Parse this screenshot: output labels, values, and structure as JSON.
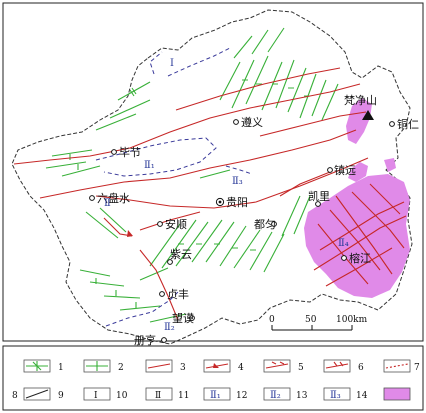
{
  "cities": {
    "bijie": "毕节",
    "zunyi": "遵义",
    "tongren": "铜仁",
    "fanjingshan": "梵净山",
    "zhenyuan": "镇远",
    "kaili": "凯里",
    "guiyang": "贵阳",
    "liupanshui": "六盘水",
    "anshun": "安顺",
    "duyun": "都匀",
    "ziyun": "紫云",
    "rongjiang": "榕江",
    "zhenfeng": "贞丰",
    "wangmo": "望谟",
    "ceheng": "册亨"
  },
  "zones": {
    "z1": "Ⅰ",
    "z2": "Ⅱ",
    "z2_1": "Ⅱ₁",
    "z2_2": "Ⅱ₂",
    "z2_3": "Ⅱ₃",
    "z2_4": "Ⅱ₄"
  },
  "scale": {
    "t0": "0",
    "t50": "50",
    "t100": "100km"
  },
  "legend": {
    "n1": "1",
    "n2": "2",
    "n3": "3",
    "n4": "4",
    "n5": "5",
    "n6": "6",
    "n7": "7",
    "n8": "8",
    "n9": "9",
    "n10": "10",
    "n11": "11",
    "n12": "12",
    "n13": "13",
    "n14": "14",
    "s9": "Ⅰ",
    "s10": "Ⅱ",
    "s11": "Ⅱ₁",
    "s12": "Ⅱ₂",
    "s13": "Ⅱ₃"
  },
  "colors": {
    "fold": "#38b038",
    "fault": "#c62828",
    "boundary": "#3a3a9a",
    "granite": "#e08ae8"
  }
}
